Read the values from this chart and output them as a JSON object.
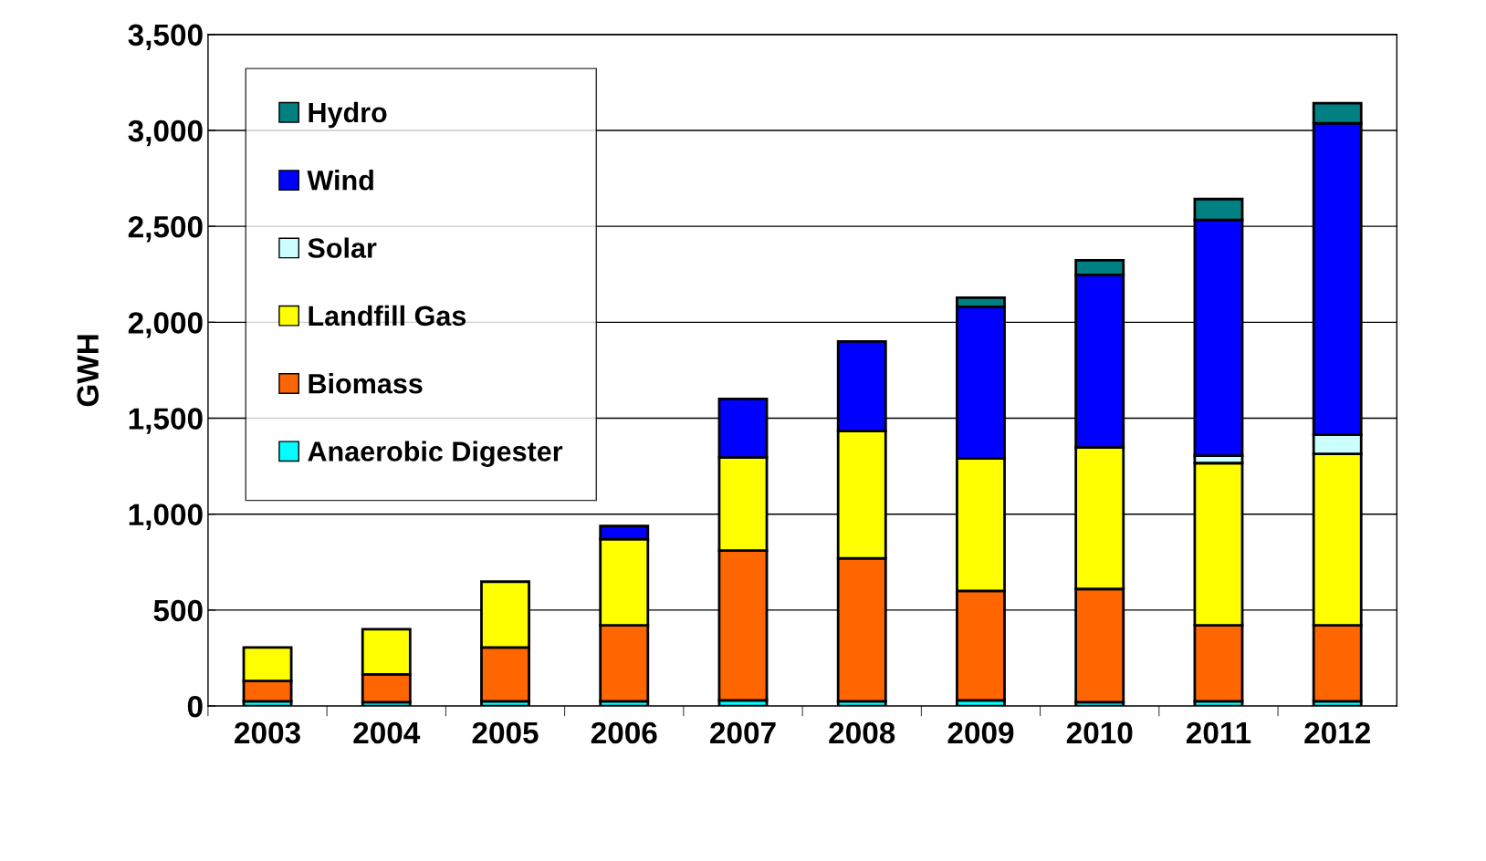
{
  "chart_data": {
    "type": "bar",
    "stacked": true,
    "ylabel": "GWH",
    "categories": [
      "2003",
      "2004",
      "2005",
      "2006",
      "2007",
      "2008",
      "2009",
      "2010",
      "2011",
      "2012"
    ],
    "series": [
      {
        "name": "Anaerobic Digester",
        "color": "#00ffff",
        "values": [
          25,
          20,
          25,
          25,
          30,
          25,
          30,
          20,
          25,
          25
        ]
      },
      {
        "name": "Biomass",
        "color": "#ff6600",
        "values": [
          105,
          145,
          280,
          395,
          780,
          745,
          570,
          590,
          395,
          395
        ]
      },
      {
        "name": "Landfill Gas",
        "color": "#ffff00",
        "values": [
          175,
          235,
          343,
          450,
          485,
          663,
          690,
          737,
          846,
          894
        ]
      },
      {
        "name": "Solar",
        "color": "#ccffff",
        "values": [
          null,
          null,
          null,
          null,
          null,
          null,
          null,
          null,
          39,
          100
        ]
      },
      {
        "name": "Wind",
        "color": "#0000ff",
        "values": [
          null,
          null,
          null,
          68,
          305,
          467,
          790,
          900,
          1228,
          1623
        ]
      },
      {
        "name": "Hydro",
        "color": "#008080",
        "values": [
          null,
          null,
          null,
          null,
          null,
          null,
          48,
          76,
          109,
          105
        ]
      }
    ],
    "ylim": [
      0,
      3500
    ],
    "yticks": [
      {
        "value": 0,
        "label": "0"
      },
      {
        "value": 500,
        "label": "500"
      },
      {
        "value": 1000,
        "label": "1,000"
      },
      {
        "value": 1500,
        "label": "1,500"
      },
      {
        "value": 2000,
        "label": "2,000"
      },
      {
        "value": 2500,
        "label": "2,500"
      },
      {
        "value": 3000,
        "label": "3,000"
      },
      {
        "value": 3500,
        "label": "3,500"
      }
    ],
    "grid": "y",
    "legend": "top left"
  }
}
